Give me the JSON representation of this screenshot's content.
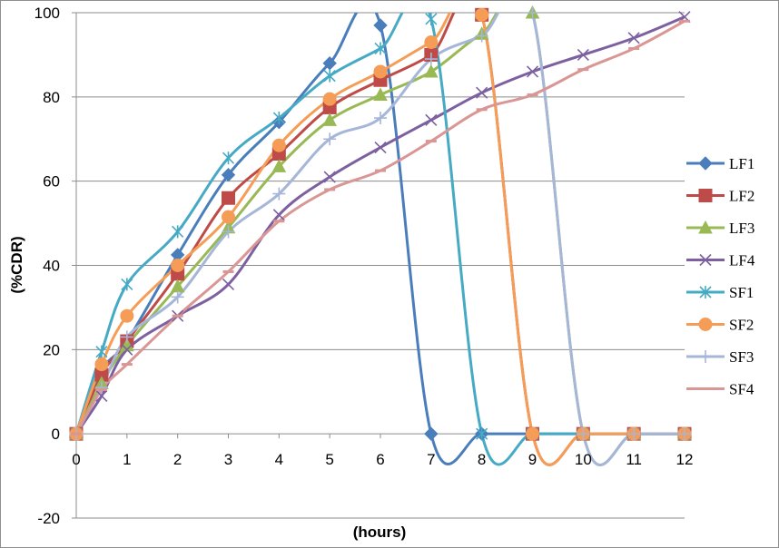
{
  "chart_data": {
    "type": "line",
    "xlabel": "(hours)",
    "ylabel": "(%CDR)",
    "xlim": [
      0,
      12
    ],
    "ylim": [
      -20,
      100
    ],
    "x_ticks": [
      0,
      1,
      2,
      3,
      4,
      5,
      6,
      7,
      8,
      9,
      10,
      11,
      12
    ],
    "y_ticks": [
      -20,
      0,
      20,
      40,
      60,
      80,
      100
    ],
    "grid": "horizontal",
    "legend_position": "right",
    "smooth": true,
    "series": [
      {
        "name": "LF1",
        "color": "#4a7ebb",
        "marker": "diamond",
        "x": [
          0,
          0.5,
          1,
          2,
          3,
          4,
          5,
          6,
          7,
          8,
          9,
          10,
          11,
          12
        ],
        "y": [
          0,
          15,
          22,
          42.5,
          61.5,
          74,
          88,
          97,
          0,
          0,
          0,
          0,
          0,
          0
        ]
      },
      {
        "name": "LF2",
        "color": "#be4b48",
        "marker": "square",
        "x": [
          0,
          0.5,
          1,
          2,
          3,
          4,
          5,
          6,
          7,
          8,
          9,
          10,
          11,
          12
        ],
        "y": [
          0,
          14,
          22,
          38,
          56,
          66.5,
          77.5,
          84,
          90,
          99.5,
          0,
          0,
          0,
          0
        ]
      },
      {
        "name": "LF3",
        "color": "#98b954",
        "marker": "triangle",
        "x": [
          0,
          0.5,
          1,
          2,
          3,
          4,
          5,
          6,
          7,
          8,
          9,
          10,
          11,
          12
        ],
        "y": [
          0,
          12,
          21,
          35,
          49,
          63.5,
          74.5,
          80.5,
          86,
          95,
          100,
          0,
          0,
          0
        ]
      },
      {
        "name": "LF4",
        "color": "#7d60a0",
        "marker": "x",
        "x": [
          0,
          0.5,
          1,
          2,
          3,
          4,
          5,
          6,
          7,
          8,
          9,
          10,
          11,
          12
        ],
        "y": [
          0,
          9,
          20,
          28,
          35.5,
          52,
          61,
          68,
          74.5,
          81,
          86,
          90,
          94,
          99
        ]
      },
      {
        "name": "SF1",
        "color": "#46aac4",
        "marker": "asterisk",
        "x": [
          0,
          0.5,
          1,
          2,
          3,
          4,
          5,
          6,
          7,
          8,
          9,
          10,
          11,
          12
        ],
        "y": [
          0,
          19.5,
          35.5,
          48,
          65.5,
          75,
          85,
          91.5,
          98.5,
          0,
          0,
          0,
          0,
          0
        ]
      },
      {
        "name": "SF2",
        "color": "#f59d56",
        "marker": "circle",
        "x": [
          0,
          0.5,
          1,
          2,
          3,
          4,
          5,
          6,
          7,
          8,
          9,
          10,
          11,
          12
        ],
        "y": [
          0,
          16.5,
          28,
          40,
          51.5,
          68.5,
          79.5,
          86,
          93,
          99.5,
          0,
          0,
          0,
          0
        ]
      },
      {
        "name": "SF3",
        "color": "#a5b6d9",
        "marker": "plus",
        "x": [
          0,
          0.5,
          1,
          2,
          3,
          4,
          5,
          6,
          7,
          8,
          9,
          10,
          11,
          12
        ],
        "y": [
          0,
          11,
          23,
          32.5,
          48,
          57,
          70,
          75,
          89,
          94.5,
          100,
          0,
          0,
          0
        ]
      },
      {
        "name": "SF4",
        "color": "#d99694",
        "marker": "dash",
        "x": [
          0,
          0.5,
          1,
          2,
          3,
          4,
          5,
          6,
          7,
          8,
          9,
          10,
          11,
          12
        ],
        "y": [
          0,
          10.5,
          16.5,
          28,
          38.5,
          50.5,
          58,
          62.5,
          69.5,
          77,
          80.5,
          86.5,
          91.5,
          98
        ]
      }
    ]
  }
}
